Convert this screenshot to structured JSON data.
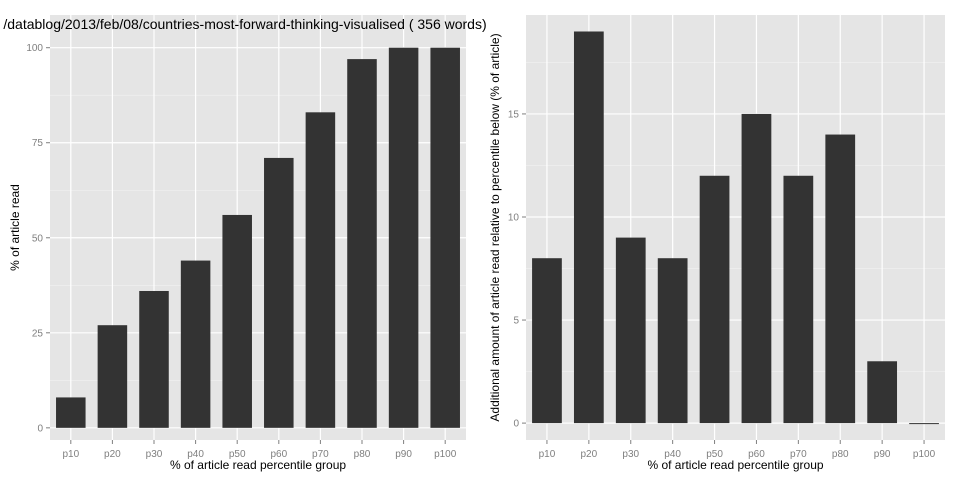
{
  "chart_data": [
    {
      "type": "bar",
      "title": "/datablog/2013/feb/08/countries-most-forward-thinking-visualised ( 356 words)",
      "categories": [
        "p10",
        "p20",
        "p30",
        "p40",
        "p50",
        "p60",
        "p70",
        "p80",
        "p90",
        "p100"
      ],
      "values": [
        8,
        27,
        36,
        44,
        56,
        71,
        83,
        97,
        100,
        100
      ],
      "xlabel": "% of article read percentile group",
      "ylabel": "% of article read",
      "ylim": [
        0,
        100
      ],
      "yticks": [
        0,
        25,
        50,
        75,
        100
      ],
      "ytick_labels": [
        "0",
        "25",
        "50",
        "75",
        "100"
      ],
      "grid": true
    },
    {
      "type": "bar",
      "title": "",
      "categories": [
        "p10",
        "p20",
        "p30",
        "p40",
        "p50",
        "p60",
        "p70",
        "p80",
        "p90",
        "p100"
      ],
      "values": [
        8,
        19,
        9,
        8,
        12,
        15,
        12,
        14,
        3,
        0
      ],
      "xlabel": "% of article read percentile group",
      "ylabel": "Additional amount of article read relative to percentile below (% of article)",
      "ylim": [
        0,
        20
      ],
      "yticks": [
        0,
        5,
        10,
        15
      ],
      "ytick_labels": [
        "0",
        "5",
        "10",
        "15"
      ],
      "grid": true
    }
  ]
}
